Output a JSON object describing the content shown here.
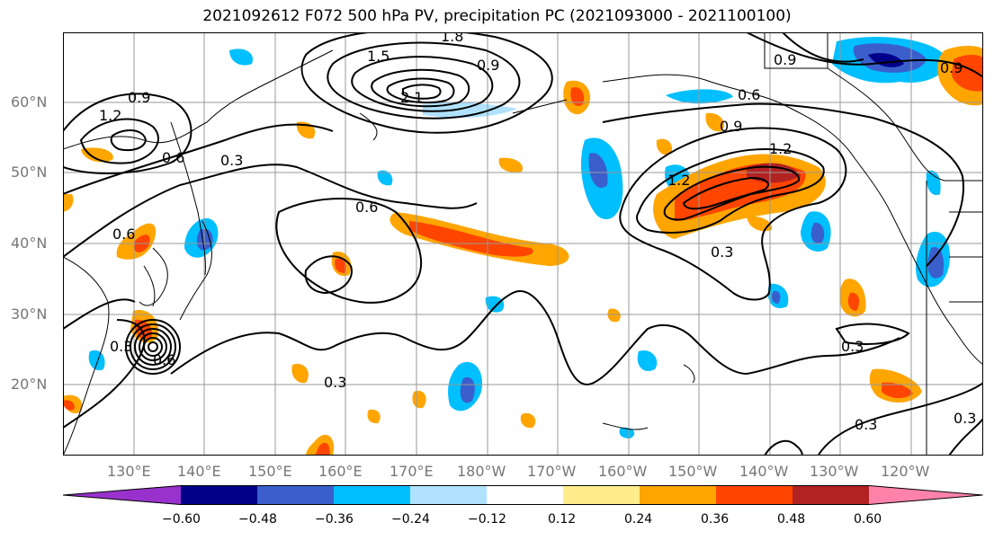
{
  "title": "2021092612 F072 500 hPa PV, precipitation PC (2021093000 - 2021100100)",
  "lat_labels": [
    "60°N",
    "50°N",
    "40°N",
    "30°N",
    "20°N"
  ],
  "lon_labels": [
    "130°E",
    "140°E",
    "150°E",
    "160°E",
    "170°E",
    "180°W",
    "170°W",
    "160°W",
    "150°W",
    "140°W",
    "130°W",
    "120°W"
  ],
  "colorbar": {
    "ticks": [
      "−0.60",
      "−0.48",
      "−0.36",
      "−0.24",
      "−0.12",
      "0.12",
      "0.24",
      "0.36",
      "0.48",
      "0.60"
    ],
    "colors": [
      "#9932cc",
      "#00008b",
      "#3a5fcd",
      "#00bfff",
      "#b0e2ff",
      "#ffffff",
      "#ffec8b",
      "#ffa500",
      "#ff4500",
      "#b22222",
      "#ff82ab"
    ]
  },
  "contour_labels": [
    "0.9",
    "1.2",
    "0.6",
    "0.3",
    "1.5",
    "2.1",
    "1.8",
    "0.9",
    "0.6",
    "0.9",
    "1.2",
    "1.2",
    "0.9",
    "0.6",
    "0.3",
    "0.6",
    "0.3",
    "0.3",
    "0.3",
    "0.3",
    "0.9",
    "0.6",
    "0.3"
  ]
}
